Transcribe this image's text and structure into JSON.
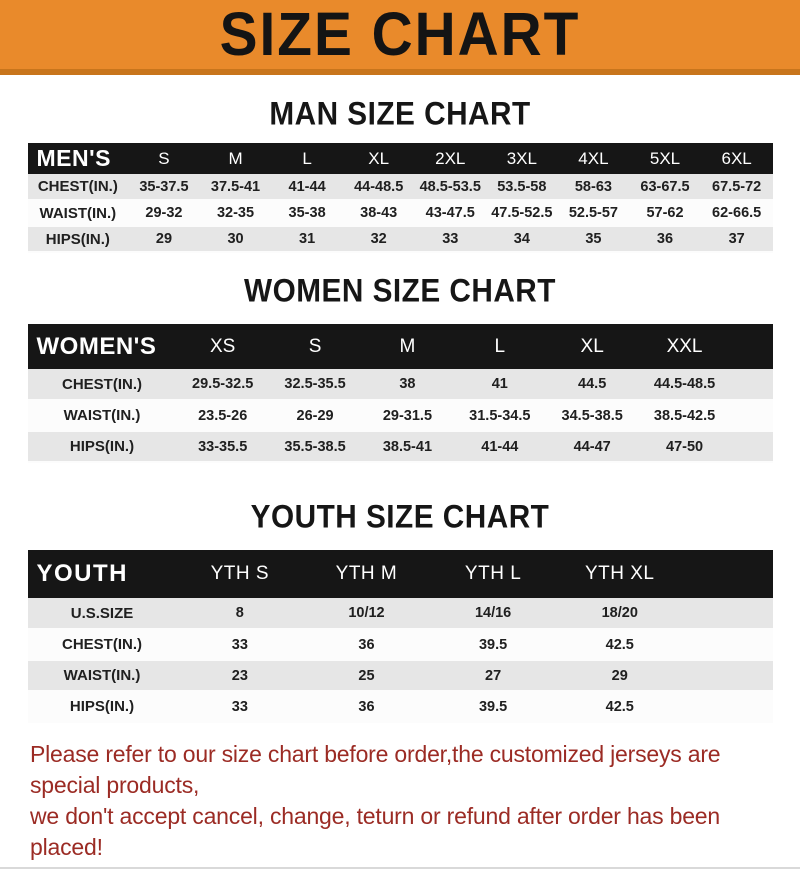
{
  "banner": {
    "title": "SIZE CHART"
  },
  "colors": {
    "banner_orange": "#E98A2B",
    "banner_border": "#C8751C",
    "table_header_black": "#161616",
    "row_gray": "#E6E6E6",
    "row_white": "#FCFCFC",
    "footer_red": "#9B2B24"
  },
  "chart_data": [
    {
      "type": "table",
      "title": "MAN SIZE CHART",
      "columns": [
        "MEN'S",
        "S",
        "M",
        "L",
        "XL",
        "2XL",
        "3XL",
        "4XL",
        "5XL",
        "6XL"
      ],
      "rows": [
        [
          "CHEST(IN.)",
          "35-37.5",
          "37.5-41",
          "41-44",
          "44-48.5",
          "48.5-53.5",
          "53.5-58",
          "58-63",
          "63-67.5",
          "67.5-72"
        ],
        [
          "WAIST(IN.)",
          "29-32",
          "32-35",
          "35-38",
          "38-43",
          "43-47.5",
          "47.5-52.5",
          "52.5-57",
          "57-62",
          "62-66.5"
        ],
        [
          "HIPS(IN.)",
          "29",
          "30",
          "31",
          "32",
          "33",
          "34",
          "35",
          "36",
          "37"
        ]
      ]
    },
    {
      "type": "table",
      "title": "WOMEN SIZE CHART",
      "columns": [
        "WOMEN'S",
        "XS",
        "S",
        "M",
        "L",
        "XL",
        "XXL"
      ],
      "rows": [
        [
          "CHEST(IN.)",
          "29.5-32.5",
          "32.5-35.5",
          "38",
          "41",
          "44.5",
          "44.5-48.5"
        ],
        [
          "WAIST(IN.)",
          "23.5-26",
          "26-29",
          "29-31.5",
          "31.5-34.5",
          "34.5-38.5",
          "38.5-42.5"
        ],
        [
          "HIPS(IN.)",
          "33-35.5",
          "35.5-38.5",
          "38.5-41",
          "41-44",
          "44-47",
          "47-50"
        ]
      ]
    },
    {
      "type": "table",
      "title": "YOUTH SIZE CHART",
      "columns": [
        "YOUTH",
        "YTH S",
        "YTH M",
        "YTH L",
        "YTH XL"
      ],
      "rows": [
        [
          "U.S.SIZE",
          "8",
          "10/12",
          "14/16",
          "18/20"
        ],
        [
          "CHEST(IN.)",
          "33",
          "36",
          "39.5",
          "42.5"
        ],
        [
          "WAIST(IN.)",
          "23",
          "25",
          "27",
          "29"
        ],
        [
          "HIPS(IN.)",
          "33",
          "36",
          "39.5",
          "42.5"
        ]
      ]
    }
  ],
  "footer": {
    "line1": "Please refer to our size chart before order,the customized jerseys are special products,",
    "line2": "we don't accept cancel, change, teturn or refund after order has been placed!"
  }
}
